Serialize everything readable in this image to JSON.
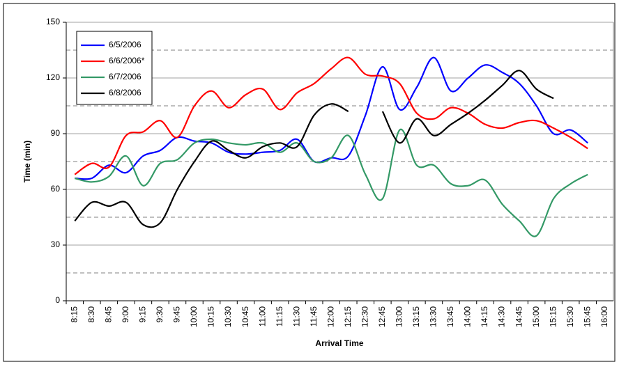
{
  "chart_data": {
    "type": "line",
    "x_label": "Arrival Time",
    "y_label": "Time (min)",
    "categories": [
      "8:15",
      "8:30",
      "8:45",
      "9:00",
      "9:15",
      "9:30",
      "9:45",
      "10:00",
      "10:15",
      "10:30",
      "10:45",
      "11:00",
      "11:15",
      "11:30",
      "11:45",
      "12:00",
      "12:15",
      "12:30",
      "12:45",
      "13:00",
      "13:15",
      "13:30",
      "13:45",
      "14:00",
      "14:15",
      "14:30",
      "14:45",
      "15:00",
      "15:15",
      "15:30",
      "15:45",
      "16:00"
    ],
    "series": [
      {
        "name": "6/5/2006",
        "color": "#0000ff",
        "values": [
          66,
          66,
          73,
          69,
          78,
          81,
          88,
          86,
          85,
          80,
          79,
          80,
          81,
          87,
          75,
          77,
          78,
          100,
          126,
          103,
          115,
          131,
          113,
          120,
          127,
          123,
          117,
          105,
          90,
          92,
          85,
          null
        ]
      },
      {
        "name": "6/6/2006*",
        "color": "#ff0000",
        "values": [
          68,
          74,
          72,
          89,
          91,
          97,
          88,
          105,
          113,
          104,
          111,
          114,
          103,
          112,
          117,
          125,
          131,
          122,
          121,
          117,
          101,
          98,
          104,
          101,
          95,
          93,
          96,
          97,
          93,
          88,
          82,
          null
        ]
      },
      {
        "name": "6/7/2006",
        "color": "#339966",
        "values": [
          66,
          64,
          67,
          78,
          62,
          74,
          76,
          85,
          87,
          85,
          84,
          85,
          80,
          85,
          75,
          77,
          89,
          68,
          55,
          92,
          73,
          73,
          63,
          62,
          65,
          52,
          43,
          35,
          55,
          63,
          68,
          null
        ]
      },
      {
        "name": "6/8/2006",
        "color": "#000000",
        "values": [
          43,
          53,
          51,
          53,
          41,
          42,
          60,
          75,
          86,
          81,
          77,
          83,
          85,
          83,
          100,
          106,
          102,
          null,
          102,
          85,
          98,
          89,
          95,
          101,
          108,
          116,
          124,
          114,
          109,
          null,
          null,
          null
        ]
      }
    ],
    "ylim": [
      0,
      150
    ],
    "yticks": [
      0,
      30,
      60,
      90,
      120,
      150
    ],
    "minor_gridlines": [
      15,
      45,
      75,
      105,
      135
    ],
    "grid": true,
    "legend": "top-left"
  }
}
